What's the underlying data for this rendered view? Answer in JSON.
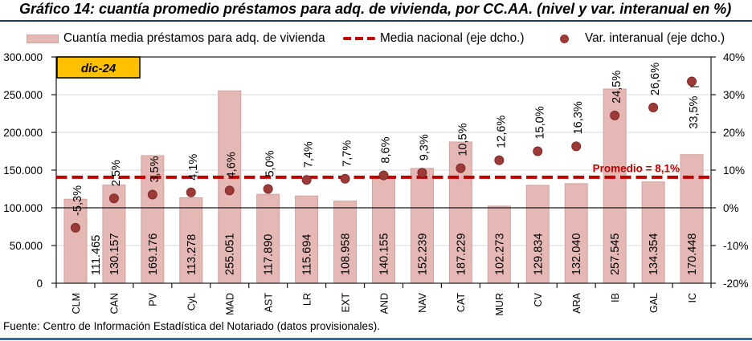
{
  "title": "Gráfico 14: cuantía promedio préstamos para adq. de vivienda, por CC.AA. (nivel y var. interanual en %)",
  "legend": {
    "bar_label": "Cuantía media préstamos para adq. de vivienda",
    "line_label": "Media nacional (eje dcho.)",
    "dot_label": "Var. interanual (eje dcho.)"
  },
  "annotation_date": "dic-24",
  "average_label": "Promedio = 8,1%",
  "footer": {
    "source": "Fuente: Centro de Información Estadística del Notariado (datos provisionales)."
  },
  "colors": {
    "bar_fill": "#E6B8B5",
    "bar_border": "#D0A29F",
    "dot": "#9C3A38",
    "dashed_line": "#C00000",
    "average_text": "#C00000",
    "annotation_fill": "#FFC000",
    "annotation_border": "#000000",
    "gridline": "#D9D9D9",
    "axis": "#000000",
    "title_rule": "#1F3A5F",
    "bottom_rule": "#3A6B9E"
  },
  "chart_data": {
    "type": "bar",
    "categories": [
      "CLM",
      "CAN",
      "PV",
      "CyL",
      "MAD",
      "AST",
      "LR",
      "EXT",
      "AND",
      "NAV",
      "CAT",
      "MUR",
      "CV",
      "ARA",
      "IB",
      "GAL",
      "IC"
    ],
    "series": [
      {
        "name": "Cuantía media préstamos para adq. de vivienda",
        "type": "bar",
        "axis": "left",
        "values": [
          111465,
          130157,
          169176,
          113278,
          255051,
          117890,
          115694,
          108958,
          140155,
          152239,
          187229,
          102273,
          129834,
          132040,
          257545,
          134354,
          170448
        ],
        "labels": [
          "111.465",
          "130.157",
          "169.176",
          "113.278",
          "255.051",
          "117.890",
          "115.694",
          "108.958",
          "140.155",
          "152.239",
          "187.229",
          "102.273",
          "129.834",
          "132.040",
          "257.545",
          "134.354",
          "170.448"
        ]
      },
      {
        "name": "Var. interanual (eje dcho.)",
        "type": "scatter",
        "axis": "right",
        "values": [
          -5.3,
          2.5,
          3.5,
          4.1,
          4.6,
          5.0,
          7.4,
          7.7,
          8.6,
          9.3,
          10.5,
          12.6,
          15.0,
          16.3,
          24.5,
          26.6,
          33.5
        ],
        "labels": [
          "-5,3%",
          "2,5%",
          "3,5%",
          "4,1%",
          "4,6%",
          "5,0%",
          "7,4%",
          "7,7%",
          "8,6%",
          "9,3%",
          "10,5%",
          "12,6%",
          "15,0%",
          "16,3%",
          "24,5%",
          "26,6%",
          "33,5%"
        ]
      },
      {
        "name": "Media nacional (eje dcho.)",
        "type": "line",
        "axis": "right",
        "value": 8.1
      }
    ],
    "y1": {
      "lim": [
        0,
        300000
      ],
      "ticks": [
        0,
        50000,
        100000,
        150000,
        200000,
        250000,
        300000
      ],
      "ticklabels": [
        "0",
        "50.000",
        "100.000",
        "150.000",
        "200.000",
        "250.000",
        "300.000"
      ]
    },
    "y2": {
      "lim": [
        -20,
        40
      ],
      "ticks": [
        -20,
        -10,
        0,
        10,
        20,
        30,
        40
      ],
      "ticklabels": [
        "-20%",
        "-10%",
        "0%",
        "10%",
        "20%",
        "30%",
        "40%"
      ]
    },
    "title": "Gráfico 14: cuantía promedio préstamos para adq. de vivienda, por CC.AA. (nivel y var. interanual en %)",
    "grid": true,
    "legend_position": "top",
    "layout_hints": {
      "value_label_dx": [
        25,
        0,
        0,
        0,
        0,
        0,
        0,
        0,
        0,
        0,
        0,
        0,
        0,
        0,
        0,
        0,
        0
      ],
      "pct_label_side": [
        "above",
        "above",
        "above",
        "above",
        "above",
        "above",
        "above",
        "above",
        "above",
        "above",
        "above",
        "above",
        "above",
        "above",
        "above",
        "above",
        "below"
      ]
    }
  }
}
